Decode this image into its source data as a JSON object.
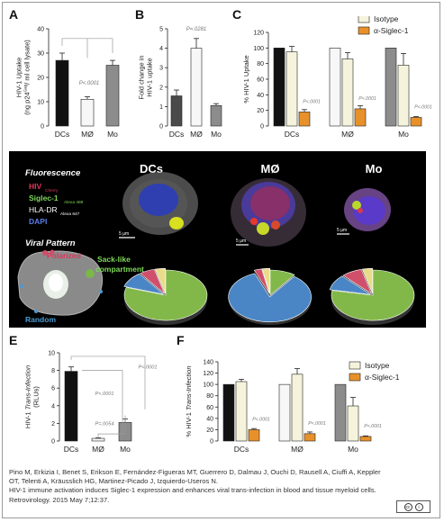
{
  "panels": {
    "A": "A",
    "B": "B",
    "C": "C",
    "D": "D",
    "E": "E",
    "F": "F"
  },
  "colors": {
    "black_bar": "#111111",
    "white_bar": "#f7f7f7",
    "gray_bar": "#8c8c8c",
    "isotype": "#f5f3dc",
    "siglec": "#e8912a",
    "pie_green": "#82b84a",
    "pie_blue": "#4a86c6",
    "pie_red": "#d04f6a",
    "pie_yellow": "#e8dc8a"
  },
  "chart_data": [
    {
      "id": "A",
      "type": "bar",
      "categories": [
        "DCs",
        "MØ",
        "Mo"
      ],
      "values": [
        27,
        11,
        25
      ],
      "errors": [
        3,
        1,
        2
      ],
      "ylabel": "HIV-1 Uptake\n(ng p24Gag/ ml cell lysate)",
      "yticks": [
        0,
        10,
        20,
        30,
        40
      ],
      "ylim": [
        0,
        40
      ],
      "annotation": "P<.0001"
    },
    {
      "id": "B",
      "type": "bar",
      "categories": [
        "DCs",
        "MØ",
        "Mo"
      ],
      "values": [
        1.55,
        4.0,
        1.05
      ],
      "errors": [
        0.3,
        0.5,
        0.1
      ],
      "ylabel": "Fold change in\nHIV-1 uptake",
      "yticks": [
        0,
        1,
        2,
        3,
        4,
        5
      ],
      "ylim": [
        0,
        5
      ],
      "annotation": "P=.0281"
    },
    {
      "id": "C",
      "type": "bar",
      "categories": [
        "DCs",
        "MØ",
        "Mo"
      ],
      "series": [
        {
          "name": "",
          "values": [
            100,
            100,
            100
          ]
        },
        {
          "name": "Isotype",
          "values": [
            95,
            86,
            78
          ],
          "errors": [
            7,
            8,
            15
          ]
        },
        {
          "name": "α-Siglec-1",
          "values": [
            18,
            22,
            11
          ],
          "errors": [
            3,
            4,
            1
          ]
        }
      ],
      "ylabel": "% HIV-1 Uptake",
      "yticks": [
        0,
        20,
        40,
        60,
        80,
        100,
        120
      ],
      "ylim": [
        0,
        120
      ],
      "annotations": [
        "P<.0001",
        "P<.0001",
        "P<.0001"
      ]
    },
    {
      "id": "E",
      "type": "bar",
      "categories": [
        "DCs",
        "MØ",
        "Mo"
      ],
      "values": [
        7.9,
        0.3,
        2.1
      ],
      "errors": [
        0.5,
        0.05,
        0.4
      ],
      "ylabel": "HIV-1 Trans-Infection\n(RLUs)",
      "yticks": [
        0,
        2,
        4,
        6,
        8,
        10
      ],
      "ylim": [
        0,
        10
      ],
      "annotations": [
        "P<.0001",
        "P<.0001",
        "P=.0054"
      ]
    },
    {
      "id": "F",
      "type": "bar",
      "categories": [
        "DCs",
        "MØ",
        "Mo"
      ],
      "series": [
        {
          "name": "",
          "values": [
            100,
            100,
            100
          ]
        },
        {
          "name": "Isotype",
          "values": [
            105,
            118,
            62
          ],
          "errors": [
            4,
            10,
            15
          ]
        },
        {
          "name": "α-Siglec-1",
          "values": [
            20,
            13,
            8
          ],
          "errors": [
            2,
            3,
            1
          ]
        }
      ],
      "ylabel": "% HIV-1 Trans-Infection",
      "yticks": [
        0,
        20,
        40,
        60,
        80,
        100,
        120,
        140
      ],
      "ylim": [
        0,
        140
      ],
      "annotations": [
        "P<.0001",
        "P<.0001",
        "P<.0001"
      ]
    },
    {
      "id": "D-pies",
      "type": "pie",
      "categories": [
        "Sack-like compartment",
        "Random",
        "Polarized",
        "Other"
      ],
      "pies": [
        {
          "label": "DCs",
          "values": [
            80,
            10,
            6,
            4
          ]
        },
        {
          "label": "MØ",
          "values": [
            10,
            84,
            3,
            3
          ]
        },
        {
          "label": "Mo",
          "values": [
            78,
            10,
            8,
            4
          ]
        }
      ]
    }
  ],
  "panelD": {
    "fluorescence_title": "Fluorescence",
    "hiv_label": "HIV",
    "hiv_sub": "Cherry",
    "siglec_label": "Siglec-1",
    "siglec_sub": "Alexa 488",
    "hla_label": "HLA-DR",
    "hla_sub": "Alexa 647",
    "dapi_label": "DAPI",
    "col_dcs": "DCs",
    "col_mo_macro": "MØ",
    "col_mo": "Mo",
    "scale": "5 µm",
    "viral_pattern_title": "Viral Pattern",
    "polarized": "Polarized",
    "sack_like_line1": "Sack-like",
    "sack_like_line2": "compartment",
    "random": "Random"
  },
  "citation": {
    "authors": "Pino M, Erkizia I, Benet S, Erikson E, Fernández-Figueras MT, Guerrero D, Dalmau J, Ouchi D, Rausell A, Ciuffi A, Keppler OT, Telenti A, Kräusslich HG, Martinez-Picado J, Izquierdo-Useros N.",
    "title": "HIV-1 immune activation induces Siglec-1 expression and enhances viral trans-infection in blood and tissue myeloid cells.",
    "journal": "Retrovirology. 2015 May 7;12:37."
  },
  "license_icon": "cc-by-icon"
}
